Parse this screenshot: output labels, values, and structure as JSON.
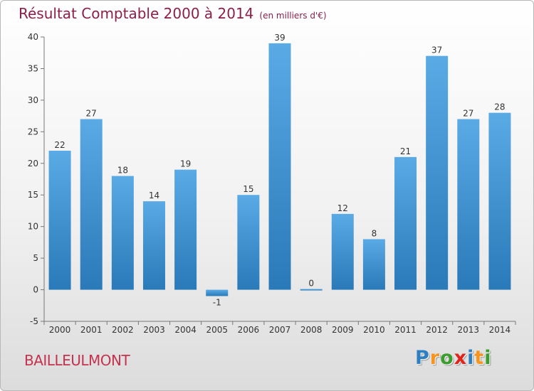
{
  "header": {
    "title": "Résultat Comptable 2000 à 2014",
    "unit": "(en milliers d'€)"
  },
  "commune": "BAILLEULMONT",
  "logo": {
    "text": "Proxiti",
    "letters": [
      {
        "ch": "P",
        "color": "#2e7fc2"
      },
      {
        "ch": "r",
        "color": "#f7941d"
      },
      {
        "ch": "o",
        "color": "#3a9d2e"
      },
      {
        "ch": "x",
        "color": "#e2231a"
      },
      {
        "ch": "i",
        "color": "#2e7fc2"
      },
      {
        "ch": "t",
        "color": "#f7941d"
      },
      {
        "ch": "i",
        "color": "#3a9d2e"
      }
    ]
  },
  "colors": {
    "bar_light": "#5aaae6",
    "bar_dark": "#2a79b8",
    "title": "#8b1f4a",
    "commune": "#c5324e"
  },
  "chart_data": {
    "type": "bar",
    "title": "Résultat Comptable 2000 à 2014",
    "subtitle": "(en milliers d'€)",
    "xlabel": "",
    "ylabel": "",
    "categories": [
      "2000",
      "2001",
      "2002",
      "2003",
      "2004",
      "2005",
      "2006",
      "2007",
      "2008",
      "2009",
      "2010",
      "2011",
      "2012",
      "2013",
      "2014"
    ],
    "values": [
      22,
      27,
      18,
      14,
      19,
      -1,
      15,
      39,
      0,
      12,
      8,
      21,
      37,
      27,
      28
    ],
    "ylim": [
      -5,
      40
    ],
    "yticks": [
      -5,
      0,
      5,
      10,
      15,
      20,
      25,
      30,
      35,
      40
    ],
    "grid": false,
    "legend": "none"
  }
}
